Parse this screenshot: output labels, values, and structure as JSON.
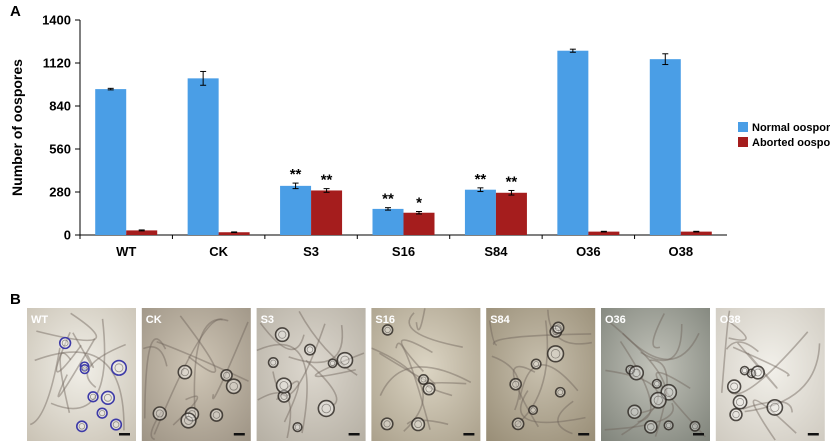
{
  "figure": {
    "panel_a_label": "A",
    "panel_b_label": "B"
  },
  "chart_data": {
    "type": "bar",
    "title": "",
    "ylabel": "Number of oospores",
    "xlabel": "",
    "categories": [
      "WT",
      "CK",
      "S3",
      "S16",
      "S84",
      "O36",
      "O38"
    ],
    "series": [
      {
        "name": "Normal oospores",
        "color": "#4a9ee6",
        "values": [
          950,
          1020,
          320,
          170,
          295,
          1200,
          1145
        ],
        "errors": [
          5,
          45,
          18,
          8,
          12,
          10,
          35
        ],
        "significance": [
          "",
          "",
          "**",
          "**",
          "**",
          "",
          ""
        ]
      },
      {
        "name": "Aborted oospores",
        "color": "#a51d1d",
        "values": [
          30,
          18,
          290,
          145,
          275,
          22,
          22
        ],
        "errors": [
          3,
          2,
          12,
          8,
          15,
          2,
          2
        ],
        "significance": [
          "",
          "",
          "**",
          "*",
          "**",
          "",
          ""
        ]
      }
    ],
    "ylim": [
      0,
      1400
    ],
    "yticks": [
      0,
      280,
      560,
      840,
      1120,
      1400
    ],
    "grid": false,
    "legend": "right"
  },
  "micrographs": {
    "labels": [
      "WT",
      "CK",
      "S3",
      "S16",
      "S84",
      "O36",
      "O38"
    ]
  }
}
